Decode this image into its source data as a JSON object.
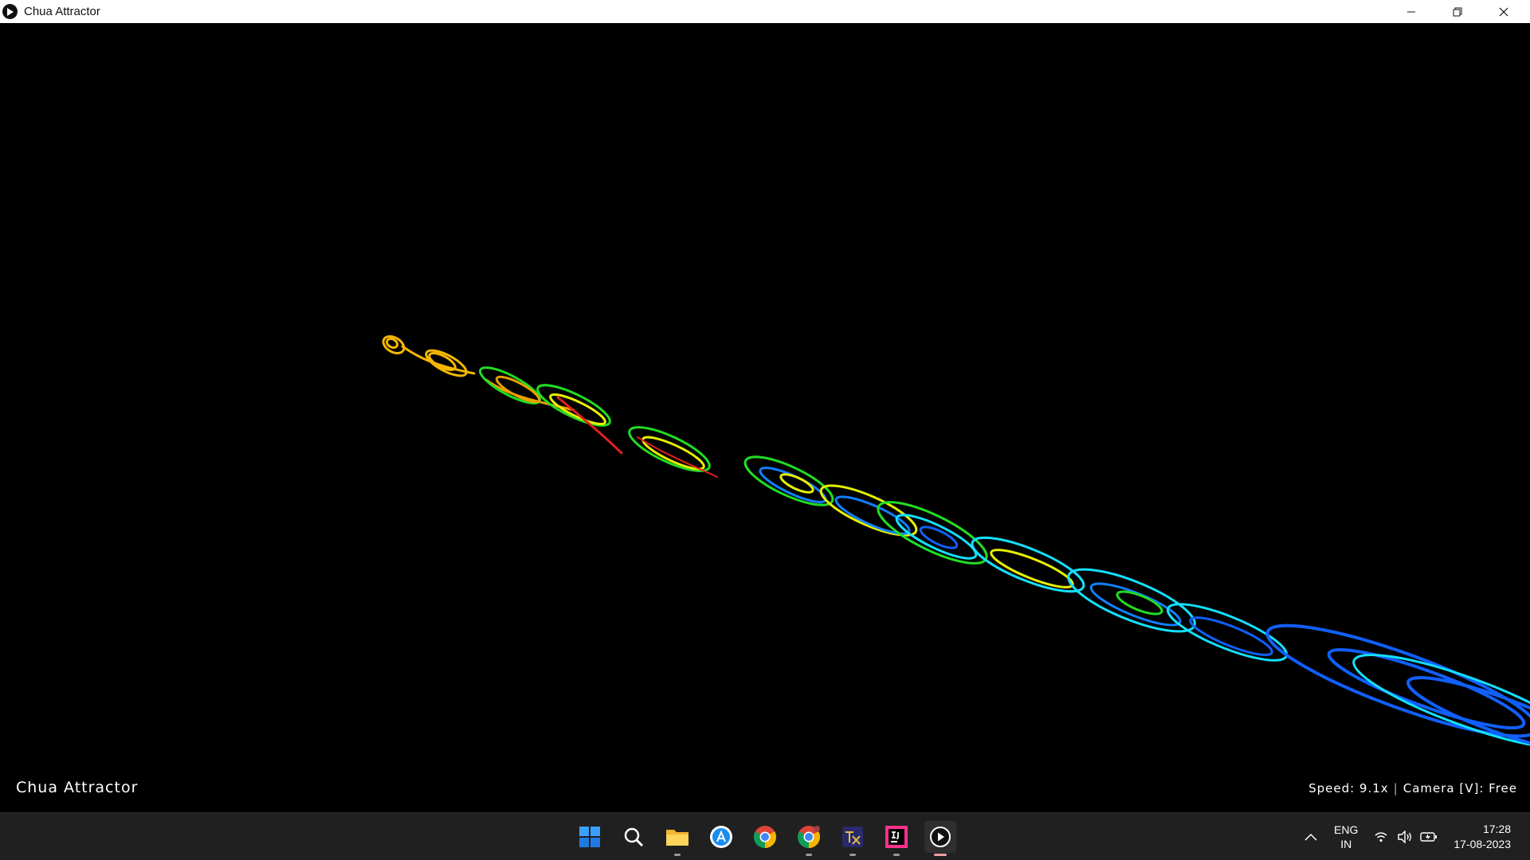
{
  "window": {
    "title": "Chua Attractor",
    "controls": [
      "minimize-icon",
      "restore-icon",
      "close-icon"
    ]
  },
  "overlay": {
    "title": "Chua Attractor",
    "speed": "Speed: 9.1x",
    "separator": "|",
    "camera": "Camera [V]: Free"
  },
  "taskbar": {
    "apps": [
      {
        "name": "start-button",
        "icon": "windows-logo-icon",
        "active": false
      },
      {
        "name": "search-button",
        "icon": "search-icon",
        "active": false
      },
      {
        "name": "file-explorer-button",
        "icon": "folder-icon",
        "active": false
      },
      {
        "name": "app-store-button",
        "icon": "app-store-icon",
        "active": false
      },
      {
        "name": "chrome-button",
        "icon": "chrome-icon",
        "active": false
      },
      {
        "name": "chrome-canary-button",
        "icon": "chrome-canary-icon",
        "active": false
      },
      {
        "name": "texstudio-button",
        "icon": "texstudio-icon",
        "active": false
      },
      {
        "name": "intellij-button",
        "icon": "intellij-icon",
        "active": false
      },
      {
        "name": "chua-attractor-button",
        "icon": "play-icon",
        "active": true
      }
    ],
    "tray": {
      "language_line1": "ENG",
      "language_line2": "IN",
      "time": "17:28",
      "date": "17-08-2023",
      "icons": [
        "chevron-up-icon",
        "wifi-icon",
        "volume-icon",
        "battery-icon"
      ]
    }
  },
  "colors": {
    "orange": "#f5b800",
    "green": "#22dd22",
    "yellow": "#e8f000",
    "red": "#e02020",
    "cyan": "#14e0ff",
    "blue": "#1060ff"
  }
}
